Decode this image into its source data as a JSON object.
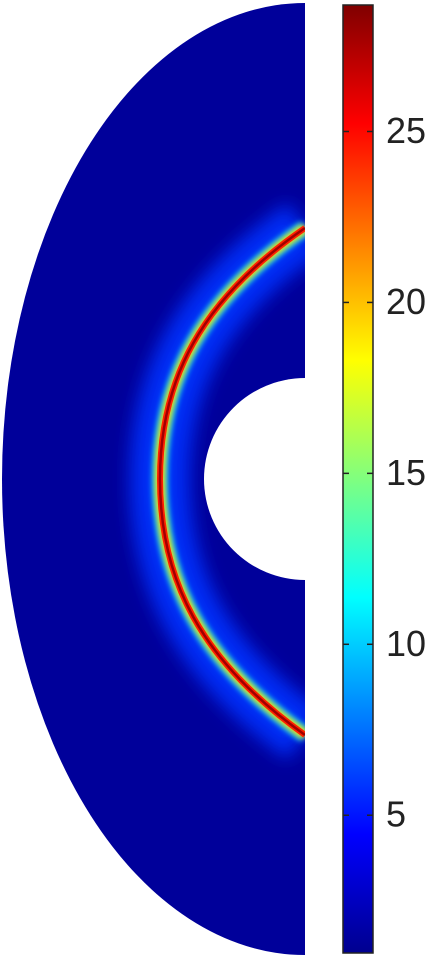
{
  "chart_data": {
    "type": "field",
    "colormap": "jet",
    "clim": [
      0.97,
      28.7
    ],
    "cticks": [
      5,
      10,
      15,
      20,
      25
    ]
  }
}
